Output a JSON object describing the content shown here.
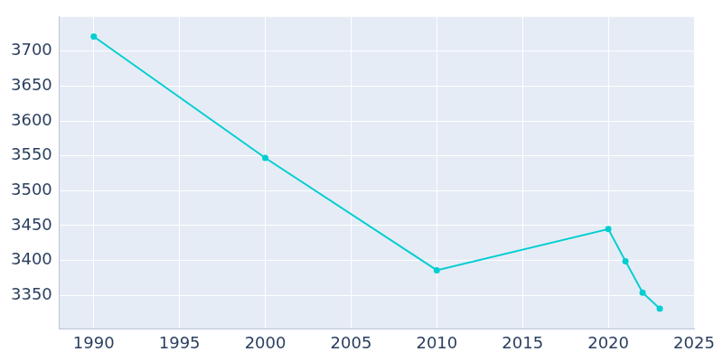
{
  "chart_data": {
    "type": "line",
    "x": [
      1990,
      2000,
      2010,
      2020,
      2021,
      2022,
      2023
    ],
    "values": [
      3721,
      3547,
      3386,
      3445,
      3399,
      3354,
      3331
    ],
    "color": "#00ced1",
    "xlim": [
      1988,
      2025
    ],
    "xticks": [
      1990,
      1995,
      2000,
      2005,
      2010,
      2015,
      2020,
      2025
    ],
    "ylim": [
      3302,
      3749
    ],
    "yticks": [
      3350,
      3400,
      3450,
      3500,
      3550,
      3600,
      3650,
      3700
    ],
    "grid": true,
    "marker": "circle"
  }
}
